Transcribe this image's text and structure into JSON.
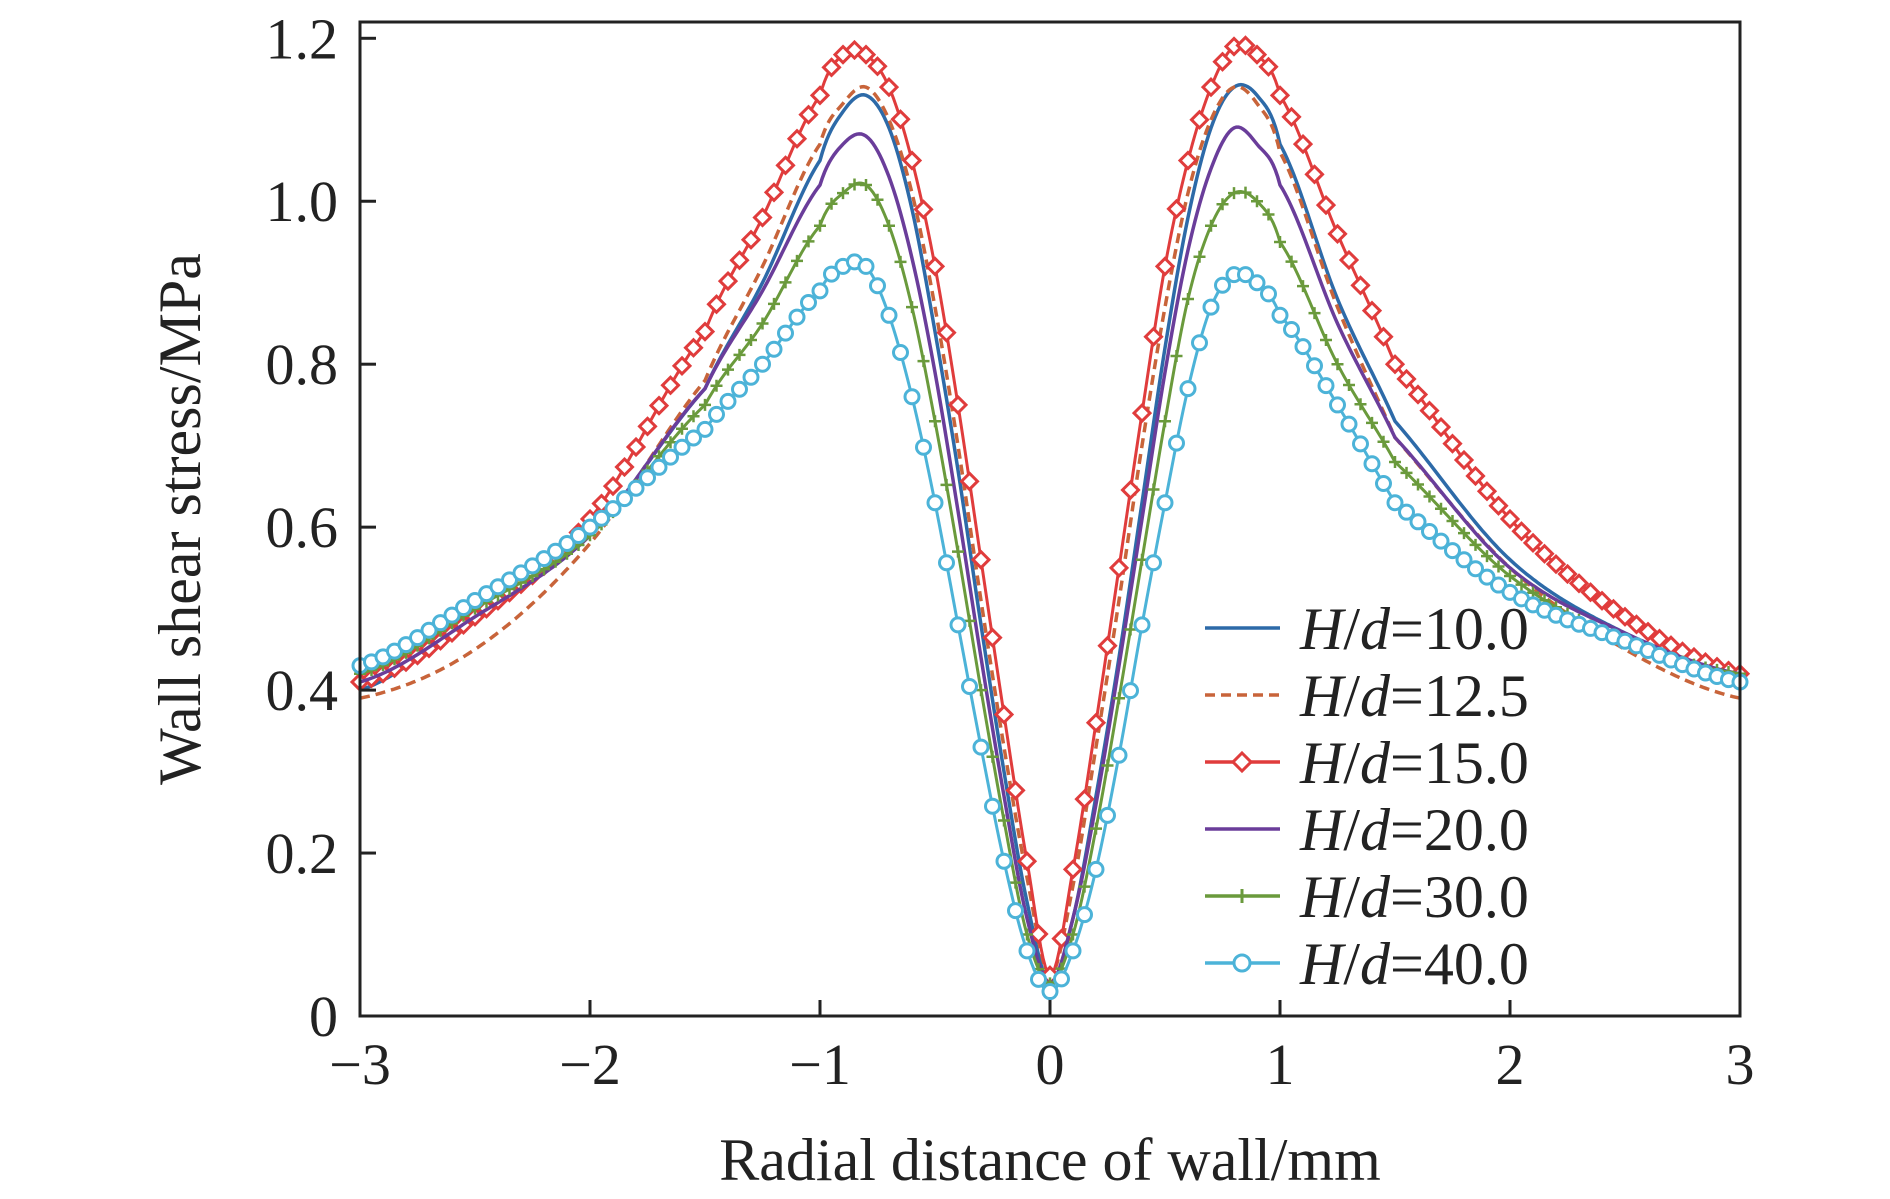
{
  "chart_data": {
    "type": "line",
    "xlabel": "Radial distance of wall/mm",
    "ylabel": "Wall shear stress/MPa",
    "xlim": [
      -3,
      3
    ],
    "ylim": [
      0,
      1.22
    ],
    "x_ticks": [
      -3,
      -2,
      -1,
      0,
      1,
      2,
      3
    ],
    "x_tick_labels": [
      "−3",
      "−2",
      "−1",
      "0",
      "1",
      "2",
      "3"
    ],
    "y_ticks": [
      0,
      0.2,
      0.4,
      0.6,
      0.8,
      1.0,
      1.2
    ],
    "y_tick_labels": [
      "0",
      "0.2",
      "0.4",
      "0.6",
      "0.8",
      "1.0",
      "1.2"
    ],
    "grid": false,
    "legend_position": "bottom-right",
    "x": [
      -3.0,
      -2.5,
      -2.0,
      -1.5,
      -1.25,
      -1.0,
      -0.9,
      -0.8,
      -0.7,
      -0.6,
      -0.5,
      -0.4,
      -0.3,
      -0.2,
      -0.1,
      0.0,
      0.1,
      0.2,
      0.3,
      0.4,
      0.5,
      0.6,
      0.7,
      0.8,
      0.9,
      1.0,
      1.25,
      1.5,
      2.0,
      2.5,
      3.0
    ],
    "series": [
      {
        "name_prefix": "H/d",
        "name_value": "=10.0",
        "color": "#2d6aa8",
        "style": "solid",
        "marker": "none",
        "values": [
          0.4,
          0.49,
          0.59,
          0.77,
          0.9,
          1.05,
          1.11,
          1.13,
          1.09,
          0.99,
          0.84,
          0.67,
          0.48,
          0.3,
          0.14,
          0.04,
          0.12,
          0.27,
          0.44,
          0.63,
          0.82,
          0.98,
          1.09,
          1.14,
          1.13,
          1.07,
          0.88,
          0.73,
          0.56,
          0.47,
          0.42
        ]
      },
      {
        "name_prefix": "H/d",
        "name_value": "=12.5",
        "color": "#c8643a",
        "style": "dashed",
        "marker": "none",
        "values": [
          0.39,
          0.45,
          0.58,
          0.78,
          0.92,
          1.07,
          1.12,
          1.14,
          1.1,
          1.01,
          0.87,
          0.7,
          0.51,
          0.33,
          0.17,
          0.05,
          0.16,
          0.33,
          0.51,
          0.7,
          0.87,
          1.01,
          1.1,
          1.14,
          1.12,
          1.06,
          0.87,
          0.71,
          0.55,
          0.45,
          0.39
        ]
      },
      {
        "name_prefix": "H/d",
        "name_value": "=15.0",
        "color": "#e03c3c",
        "style": "solid",
        "marker": "diamond",
        "values": [
          0.41,
          0.49,
          0.61,
          0.84,
          0.98,
          1.13,
          1.18,
          1.18,
          1.14,
          1.05,
          0.92,
          0.75,
          0.56,
          0.37,
          0.19,
          0.05,
          0.18,
          0.36,
          0.55,
          0.74,
          0.92,
          1.05,
          1.14,
          1.19,
          1.18,
          1.13,
          0.96,
          0.8,
          0.61,
          0.49,
          0.42
        ]
      },
      {
        "name_prefix": "H/d",
        "name_value": "=20.0",
        "color": "#6a3d9a",
        "style": "solid",
        "marker": "none",
        "values": [
          0.41,
          0.49,
          0.59,
          0.77,
          0.89,
          1.02,
          1.07,
          1.08,
          1.03,
          0.93,
          0.79,
          0.62,
          0.44,
          0.27,
          0.12,
          0.04,
          0.12,
          0.26,
          0.43,
          0.61,
          0.79,
          0.94,
          1.04,
          1.09,
          1.07,
          1.02,
          0.85,
          0.71,
          0.55,
          0.47,
          0.42
        ]
      },
      {
        "name_prefix": "H/d",
        "name_value": "=30.0",
        "color": "#6a9a3c",
        "style": "solid",
        "marker": "plus",
        "values": [
          0.42,
          0.5,
          0.59,
          0.75,
          0.85,
          0.97,
          1.01,
          1.02,
          0.97,
          0.87,
          0.73,
          0.57,
          0.4,
          0.24,
          0.1,
          0.04,
          0.1,
          0.23,
          0.39,
          0.56,
          0.73,
          0.88,
          0.97,
          1.01,
          1.0,
          0.95,
          0.8,
          0.68,
          0.54,
          0.46,
          0.42
        ]
      },
      {
        "name_prefix": "H/d",
        "name_value": "=40.0",
        "color": "#4cb3d8",
        "style": "solid",
        "marker": "circle",
        "values": [
          0.43,
          0.51,
          0.6,
          0.72,
          0.8,
          0.89,
          0.92,
          0.92,
          0.86,
          0.76,
          0.63,
          0.48,
          0.33,
          0.19,
          0.08,
          0.03,
          0.08,
          0.18,
          0.32,
          0.48,
          0.63,
          0.77,
          0.87,
          0.91,
          0.9,
          0.86,
          0.75,
          0.63,
          0.52,
          0.46,
          0.41
        ]
      }
    ]
  }
}
